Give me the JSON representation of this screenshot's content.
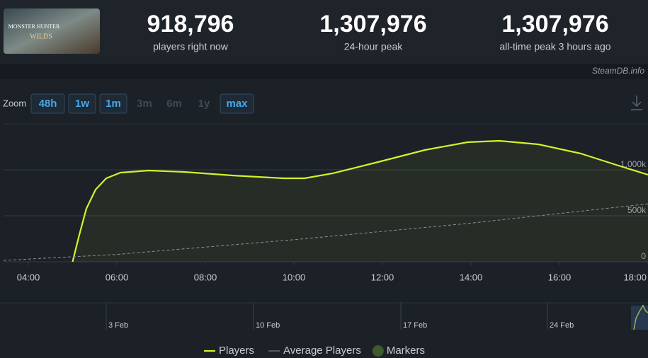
{
  "header": {
    "logo_lines": [
      "MONSTER HUNTER",
      "WILDS"
    ],
    "stats": [
      {
        "value": "918,796",
        "label": "players right now"
      },
      {
        "value": "1,307,976",
        "label": "24-hour peak"
      },
      {
        "value": "1,307,976",
        "label": "all-time peak 3 hours ago"
      }
    ],
    "credit": "SteamDB.info"
  },
  "zoom": {
    "label": "Zoom",
    "buttons": [
      "48h",
      "1w",
      "1m",
      "3m",
      "6m",
      "1y",
      "max"
    ],
    "enabled": [
      true,
      true,
      true,
      false,
      false,
      false,
      true
    ]
  },
  "chart_data": {
    "type": "line",
    "xlim": [
      3.44,
      18
    ],
    "xticks": [
      {
        "value": 4,
        "label": "04:00"
      },
      {
        "value": 6,
        "label": "06:00"
      },
      {
        "value": 8,
        "label": "08:00"
      },
      {
        "value": 10,
        "label": "10:00"
      },
      {
        "value": 12,
        "label": "12:00"
      },
      {
        "value": 14,
        "label": "14:00"
      },
      {
        "value": 16,
        "label": "16:00"
      },
      {
        "value": 18,
        "label": "18:00"
      }
    ],
    "ylim": [
      0,
      1500000
    ],
    "yticks": [
      {
        "value": 0,
        "label": "0"
      },
      {
        "value": 500000,
        "label": "500k"
      },
      {
        "value": 1000000,
        "label": "1,000k"
      }
    ],
    "grid": true,
    "series": [
      {
        "name": "Players",
        "color": "#d4f12a",
        "x": [
          5.0,
          5.14,
          5.31,
          5.52,
          5.76,
          6.08,
          6.72,
          7.52,
          8.64,
          9.76,
          10.24,
          10.88,
          11.84,
          12.96,
          13.92,
          14.64,
          15.52,
          16.48,
          17.28,
          18.0
        ],
        "values": [
          0,
          270000,
          577000,
          785000,
          908000,
          969000,
          992000,
          977000,
          938000,
          908000,
          908000,
          962000,
          1077000,
          1215000,
          1300000,
          1315000,
          1277000,
          1177000,
          1054000,
          946000
        ]
      },
      {
        "name": "Average Players",
        "color": "#8a8f96",
        "dashed": true,
        "x": [
          3.44,
          6,
          10,
          14,
          18
        ],
        "values": [
          15000,
          80000,
          240000,
          420000,
          630000
        ]
      }
    ],
    "markers_label": "Markers",
    "navigator_labels": [
      "3 Feb",
      "10 Feb",
      "17 Feb",
      "24 Feb"
    ]
  }
}
